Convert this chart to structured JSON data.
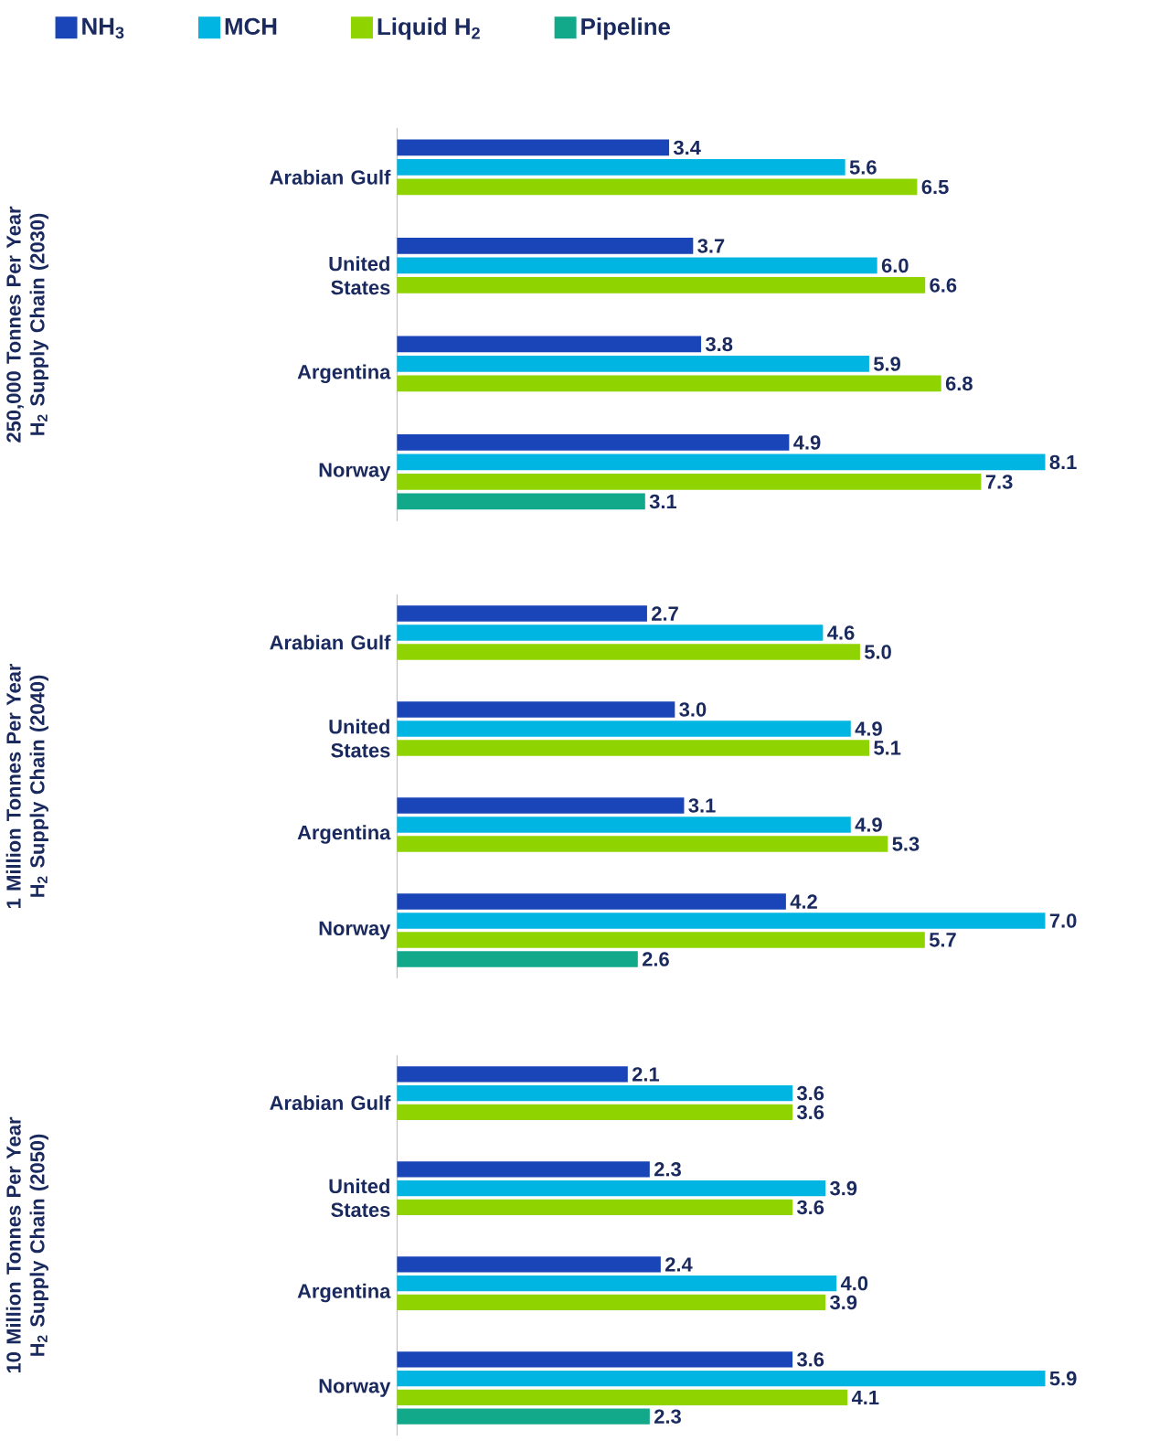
{
  "chart_data": [
    {
      "type": "bar",
      "orientation": "horizontal",
      "ylabel": "250,000 Tonnes Per Year H$_{2}$ Supply Chain (2030)",
      "categories": [
        "Arabian Gulf",
        "United States",
        "Argentina",
        "Norway"
      ],
      "legend": "top",
      "series": [
        {
          "name": "NH$_{3}$",
          "color": "#1a45b8",
          "values": [
            3.4,
            3.7,
            3.8,
            4.9
          ],
          "value_labels": [
            "3.4",
            "3.7",
            "3.8",
            "4.9"
          ]
        },
        {
          "name": "MCH",
          "color": "#00b5e2",
          "values": [
            5.6,
            6.0,
            5.9,
            8.1
          ],
          "value_labels": [
            "5.6",
            "6.0",
            "5.9",
            "8.1"
          ]
        },
        {
          "name": "Liquid H$_{2}$",
          "color": "#8fd400",
          "values": [
            6.5,
            6.6,
            6.8,
            7.3
          ],
          "value_labels": [
            "6.5",
            "6.6",
            "6.8",
            "7.3"
          ]
        },
        {
          "name": "Pipeline",
          "color": "#12a88a",
          "values": [
            null,
            null,
            null,
            3.1
          ],
          "value_labels": [
            null,
            null,
            null,
            "3.1"
          ]
        }
      ]
    },
    {
      "type": "bar",
      "orientation": "horizontal",
      "ylabel": "1 Million Tonnes Per Year H$_{2}$ Supply Chain (2040)",
      "categories": [
        "Arabian Gulf",
        "United States",
        "Argentina",
        "Norway"
      ],
      "series": [
        {
          "color": "#1a45b8",
          "values": [
            2.7,
            3.0,
            3.1,
            4.2
          ],
          "value_labels": [
            "2.7",
            "3.0",
            "3.1",
            "4.2"
          ]
        },
        {
          "color": "#00b5e2",
          "values": [
            4.6,
            4.9,
            4.9,
            7.0
          ],
          "value_labels": [
            "4.6",
            "4.9",
            "4.9",
            "7.0"
          ]
        },
        {
          "color": "#8fd400",
          "values": [
            5.0,
            5.1,
            5.3,
            5.7
          ],
          "value_labels": [
            "5.0",
            "5.1",
            "5.3",
            "5.7"
          ]
        },
        {
          "color": "#12a88a",
          "values": [
            null,
            null,
            null,
            2.6
          ],
          "value_labels": [
            null,
            null,
            null,
            "2.6"
          ]
        }
      ]
    },
    {
      "type": "bar",
      "orientation": "horizontal",
      "ylabel": "10 Million Tonnes Per Year H$_{2}$ Supply Chain (2050)",
      "categories": [
        "Arabian Gulf",
        "United States",
        "Argentina",
        "Norway"
      ],
      "series": [
        {
          "color": "#1a45b8",
          "values": [
            2.1,
            2.3,
            2.4,
            3.6
          ],
          "value_labels": [
            "2.1",
            "2.3",
            "2.4",
            "3.6"
          ]
        },
        {
          "color": "#00b5e2",
          "values": [
            3.6,
            3.9,
            4.0,
            5.9
          ],
          "value_labels": [
            "3.6",
            "3.9",
            "4.0",
            "5.9"
          ]
        },
        {
          "color": "#8fd400",
          "values": [
            3.6,
            3.6,
            3.9,
            4.1
          ],
          "value_labels": [
            "3.6",
            "3.6",
            "3.9",
            "4.1"
          ]
        },
        {
          "color": "#12a88a",
          "values": [
            null,
            null,
            null,
            2.3
          ],
          "value_labels": [
            null,
            null,
            null,
            "2.3"
          ]
        }
      ]
    }
  ]
}
